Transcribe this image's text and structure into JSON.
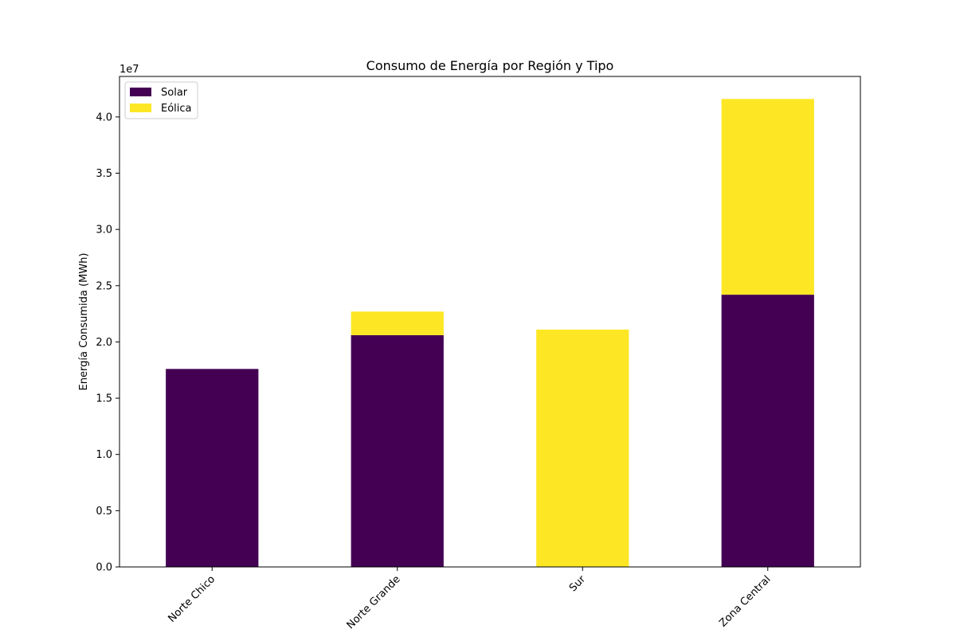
{
  "chart_data": {
    "type": "bar",
    "stacked": true,
    "title": "Consumo de Energía por Región y Tipo",
    "xlabel": "",
    "ylabel": "Energía Consumida (MWh)",
    "y_offset_label": "1e7",
    "categories": [
      "Norte Chico",
      "Norte Grande",
      "Sur",
      "Zona Central"
    ],
    "series": [
      {
        "name": "Solar",
        "color": "#440154",
        "values": [
          17600000,
          20600000,
          0,
          24200000
        ]
      },
      {
        "name": "Eólica",
        "color": "#fde725",
        "values": [
          0,
          2100000,
          21100000,
          17400000
        ]
      }
    ],
    "ylim": [
      0,
      43600000
    ],
    "yticks": [
      0,
      5000000,
      10000000,
      15000000,
      20000000,
      25000000,
      30000000,
      35000000,
      40000000
    ],
    "ytick_labels": [
      "0.0",
      "0.5",
      "1.0",
      "1.5",
      "2.0",
      "2.5",
      "3.0",
      "3.5",
      "4.0"
    ],
    "legend_position": "upper-left",
    "grid": false
  }
}
